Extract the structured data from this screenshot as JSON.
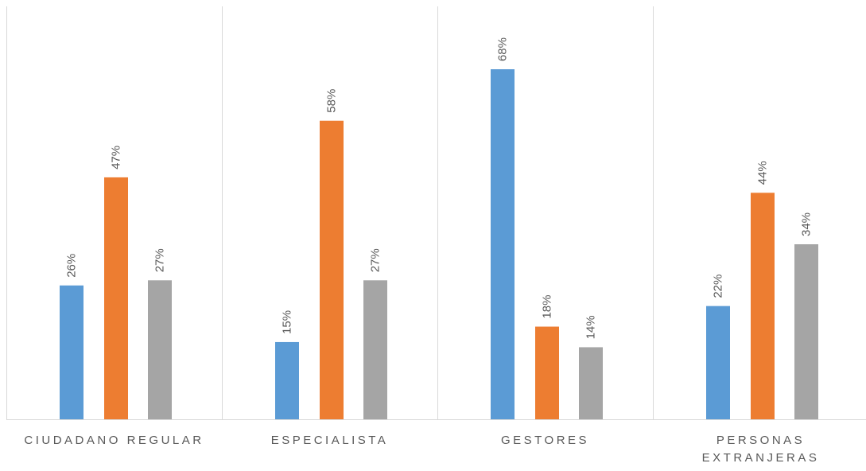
{
  "chart_data": {
    "type": "bar",
    "title": "",
    "xlabel": "",
    "ylabel": "",
    "ylim": [
      0,
      80
    ],
    "grid": false,
    "legend": "none",
    "value_format": "percent",
    "categories": [
      {
        "lines": [
          "CIUDADANO REGULAR"
        ]
      },
      {
        "lines": [
          "ESPECIALISTA"
        ]
      },
      {
        "lines": [
          "GESTORES"
        ]
      },
      {
        "lines": [
          "PERSONAS",
          "EXTRANJERAS"
        ]
      }
    ],
    "series": [
      {
        "color": "#5B9BD5",
        "values": [
          26,
          15,
          68,
          22
        ]
      },
      {
        "color": "#ED7D31",
        "values": [
          47,
          58,
          18,
          44
        ]
      },
      {
        "color": "#A5A5A5",
        "values": [
          27,
          27,
          14,
          34
        ]
      }
    ],
    "data_labels": [
      [
        "26%",
        "15%",
        "68%",
        "22%"
      ],
      [
        "47%",
        "58%",
        "18%",
        "44%"
      ],
      [
        "27%",
        "27%",
        "14%",
        "34%"
      ]
    ],
    "colors": {
      "axis": "#D9D9D9",
      "label_text": "#595959"
    }
  }
}
